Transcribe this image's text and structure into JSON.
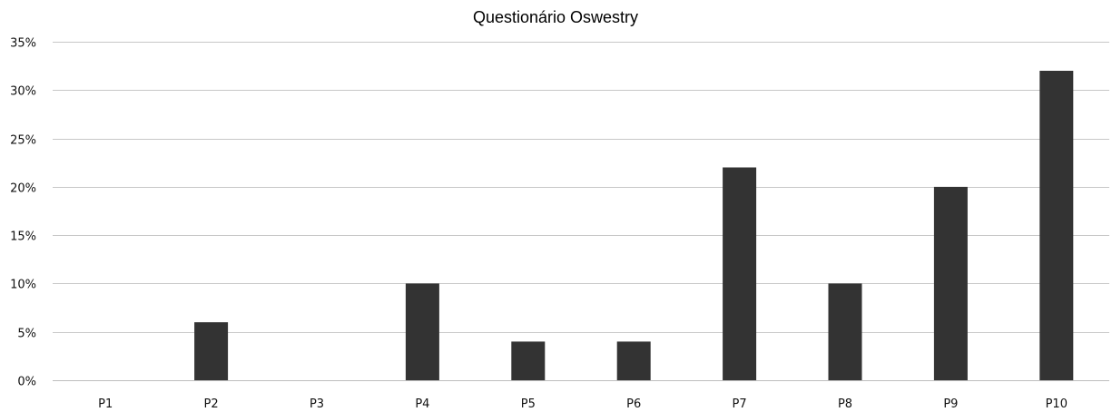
{
  "chart_data": {
    "type": "bar",
    "title": "Questionário Oswestry",
    "xlabel": "",
    "ylabel": "",
    "categories": [
      "P1",
      "P2",
      "P3",
      "P4",
      "P5",
      "P6",
      "P7",
      "P8",
      "P9",
      "P10"
    ],
    "values": [
      0,
      6,
      0,
      10,
      4,
      4,
      22,
      10,
      20,
      32
    ],
    "value_unit": "%",
    "ylim": [
      0,
      35
    ],
    "yticks": [
      0,
      5,
      10,
      15,
      20,
      25,
      30,
      35
    ],
    "ytick_labels": [
      "0%",
      "5%",
      "10%",
      "15%",
      "20%",
      "25%",
      "30%",
      "35%"
    ],
    "grid": true,
    "legend": "none",
    "bar_color": "#333333",
    "grid_color": "#c8c8c8"
  }
}
